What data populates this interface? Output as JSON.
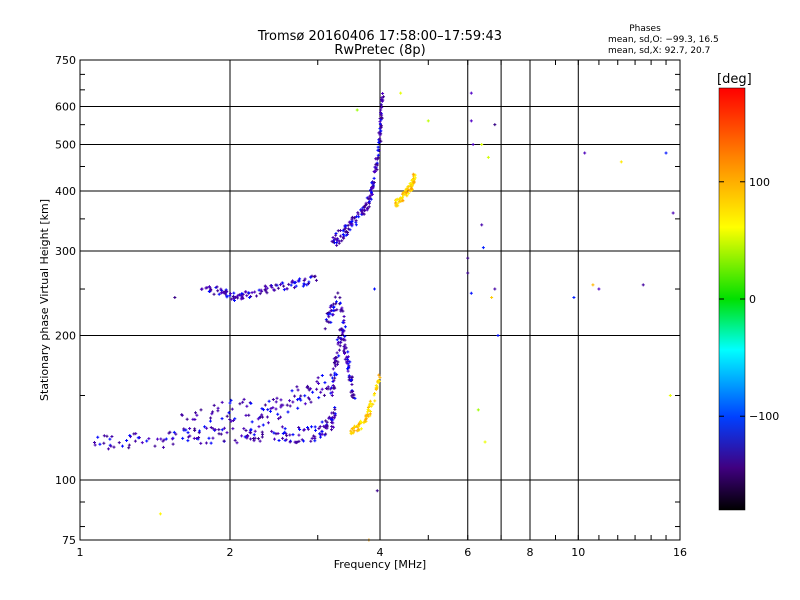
{
  "chart_data": {
    "type": "scatter",
    "title": "Tromsø 20160406 17:58:00–17:59:43",
    "subtitle": "RwPretec (8p)",
    "xlabel": "Frequency [MHz]",
    "ylabel": "Stationary phase Virtual Height [km]",
    "x_scale": "log",
    "y_scale": "log",
    "xlim": [
      1,
      16
    ],
    "ylim": [
      75,
      750
    ],
    "x_ticks": [
      1,
      2,
      4,
      6,
      8,
      10,
      16
    ],
    "x_tick_labels": [
      "1",
      "2",
      "4",
      "6",
      "8",
      "10",
      "16"
    ],
    "x_grid": [
      2,
      4,
      6,
      7,
      8,
      10
    ],
    "y_ticks": [
      75,
      100,
      200,
      300,
      400,
      500,
      600,
      750
    ],
    "y_tick_labels": [
      "75",
      "100",
      "200",
      "300",
      "400",
      "500",
      "600",
      "750"
    ],
    "y_grid": [
      100,
      200,
      300,
      400,
      500,
      600
    ],
    "grid": true,
    "stats": {
      "title": "Phases",
      "line_o": "mean, sd,O: −99.3, 16.5",
      "line_x": "mean, sd,X:  92.7, 20.7"
    },
    "colorbar": {
      "label": "[deg]",
      "range": [
        -180,
        180
      ],
      "ticks": [
        100,
        0,
        -100
      ],
      "tick_labels": [
        "100",
        "0",
        "−100"
      ],
      "colormap": "rainbow"
    },
    "series": [
      {
        "name": "O-mode E/F1 trace",
        "phase_mean": -99,
        "segments": [
          {
            "f": [
              1.05,
              1.2,
              1.4,
              1.6,
              1.8,
              2.0,
              2.2,
              2.4,
              2.6,
              2.8,
              3.0,
              3.1,
              3.2,
              3.25
            ],
            "h": [
              120,
              120,
              121,
              123,
              124,
              123,
              124,
              126,
              125,
              124,
              126,
              128,
              132,
              140
            ],
            "spread": 0.04
          },
          {
            "f": [
              1.6,
              1.8,
              2.0,
              2.2,
              2.4,
              2.6,
              2.8,
              3.0,
              3.2
            ],
            "h": [
              130,
              135,
              140,
              140,
              138,
              145,
              150,
              155,
              160
            ],
            "spread": 0.06
          },
          {
            "f": [
              3.2,
              3.25,
              3.3,
              3.35,
              3.4,
              3.45,
              3.5,
              3.55
            ],
            "h": [
              150,
              170,
              190,
              200,
              190,
              175,
              160,
              150
            ],
            "spread": 0.05
          },
          {
            "f": [
              3.1,
              3.2,
              3.3,
              3.4
            ],
            "h": [
              210,
              225,
              240,
              210
            ],
            "spread": 0.04
          },
          {
            "f": [
              1.75,
              1.9,
              2.0,
              2.1,
              2.2,
              2.4,
              2.6,
              2.8,
              3.0
            ],
            "h": [
              250,
              248,
              242,
              240,
              244,
              250,
              255,
              258,
              262
            ],
            "spread": 0.02
          }
        ]
      },
      {
        "name": "O-mode F2 trace",
        "phase_mean": -99,
        "segments": [
          {
            "f": [
              3.2,
              3.3,
              3.4,
              3.5,
              3.6,
              3.7,
              3.8,
              3.85,
              3.9,
              3.95,
              4.0,
              4.02,
              4.05
            ],
            "h": [
              310,
              320,
              330,
              340,
              350,
              365,
              380,
              400,
              430,
              470,
              520,
              580,
              640
            ],
            "spread": 0.03
          }
        ]
      },
      {
        "name": "X-mode trace",
        "phase_mean": 93,
        "segments": [
          {
            "f": [
              3.5,
              3.6,
              3.7,
              3.8,
              3.9,
              4.0
            ],
            "h": [
              125,
              128,
              132,
              138,
              150,
              165
            ],
            "spread": 0.02
          },
          {
            "f": [
              4.3,
              4.4,
              4.5,
              4.6,
              4.65,
              4.7
            ],
            "h": [
              375,
              385,
              395,
              405,
              415,
              430
            ],
            "spread": 0.02
          }
        ]
      },
      {
        "name": "sparse scatter",
        "phase_mean": -95,
        "points": [
          [
            6.1,
            640
          ],
          [
            6.1,
            560
          ],
          [
            6.15,
            500
          ],
          [
            6.0,
            290
          ],
          [
            6.0,
            270
          ],
          [
            6.4,
            340
          ],
          [
            6.45,
            305
          ],
          [
            6.1,
            245
          ],
          [
            6.8,
            250
          ],
          [
            6.8,
            550
          ],
          [
            6.9,
            200
          ],
          [
            9.8,
            240
          ],
          [
            10.3,
            480
          ],
          [
            11.0,
            250
          ],
          [
            13.5,
            255
          ],
          [
            15.0,
            480
          ],
          [
            15.5,
            360
          ],
          [
            1.55,
            240
          ],
          [
            3.95,
            95
          ],
          [
            3.9,
            250
          ]
        ]
      },
      {
        "name": "sparse yellow/red",
        "phase_mean": 80,
        "points": [
          [
            3.6,
            590
          ],
          [
            4.4,
            640
          ],
          [
            5.0,
            560
          ],
          [
            6.4,
            500
          ],
          [
            6.6,
            470
          ],
          [
            6.7,
            240
          ],
          [
            6.3,
            140
          ],
          [
            6.5,
            120
          ],
          [
            10.7,
            255
          ],
          [
            12.2,
            460
          ],
          [
            15.3,
            150
          ],
          [
            1.45,
            85
          ],
          [
            3.8,
            75
          ]
        ]
      }
    ]
  }
}
